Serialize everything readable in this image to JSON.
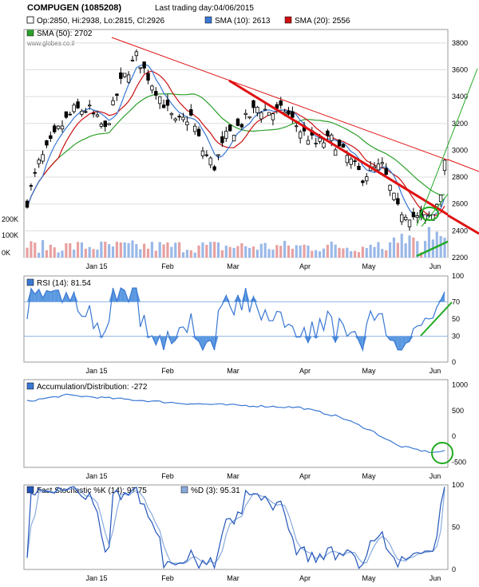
{
  "header": {
    "title": "COMPUGEN (1085208)",
    "last_trading": "Last trading day:04/06/2015",
    "ohlc": "Op:2850, Hi:2938, Lo:2815, Cl:2926",
    "sma10": "SMA (10): 2613",
    "sma20": "SMA (20): 2556",
    "sma50": "SMA (50): 2702",
    "watermark": "www.globes.co.il"
  },
  "colors": {
    "candle": "#000000",
    "sma10": "#3a78d4",
    "sma20": "#cc1111",
    "sma50": "#2aa02a",
    "trend_red": "#e01010",
    "trend_green": "#22aa22",
    "volume_up": "#9ab8e8",
    "volume_down": "#e8a0a0",
    "rsi": "#3a78d4",
    "rsi_fill": "#5a98e0",
    "ad": "#3a78d4",
    "stoch_k": "#2255bb",
    "stoch_d": "#88aadd",
    "grid": "#dddddd",
    "level": "#8fb3e6"
  },
  "x_axis": {
    "labels": [
      "Jan 15",
      "Feb",
      "Mar",
      "Apr",
      "May",
      "Jun"
    ]
  },
  "chart_data": [
    {
      "type": "candlestick",
      "name": "price",
      "ylim": [
        2200,
        3900
      ],
      "y_ticks": [
        "3800",
        "3600",
        "3400",
        "3200",
        "3000",
        "2800",
        "2600",
        "2400",
        "2200"
      ],
      "series": [
        {
          "name": "SMA (10)",
          "value": 2613
        },
        {
          "name": "SMA (20)",
          "value": 2556
        },
        {
          "name": "SMA (50)",
          "value": 2702
        }
      ],
      "last_candle": {
        "date": "04/06/2015",
        "open": 2850,
        "high": 2938,
        "low": 2815,
        "close": 2926
      }
    },
    {
      "type": "bar",
      "name": "volume",
      "y_ticks": [
        "200K",
        "100K",
        "0K"
      ]
    },
    {
      "type": "line",
      "name": "RSI",
      "legend": "RSI (14): 81.54",
      "ylim": [
        0,
        100
      ],
      "y_ticks": [
        "100",
        "70",
        "50",
        "30",
        "0"
      ],
      "levels": [
        70,
        30
      ],
      "last": 81.54
    },
    {
      "type": "line",
      "name": "Accumulation/Distribution",
      "legend": "Accumulation/Distribution: -272",
      "ylim": [
        -600,
        1100
      ],
      "y_ticks": [
        "1000",
        "500",
        "0",
        "-500"
      ],
      "last": -272
    },
    {
      "type": "line",
      "name": "Fast Stochastic",
      "legend_k": "Fast Stochastic %K (14): 97.75",
      "legend_d": "%D (3): 95.31",
      "ylim": [
        0,
        100
      ],
      "y_ticks": [
        "100",
        "50",
        "0"
      ],
      "last_k": 97.75,
      "last_d": 95.31
    }
  ]
}
